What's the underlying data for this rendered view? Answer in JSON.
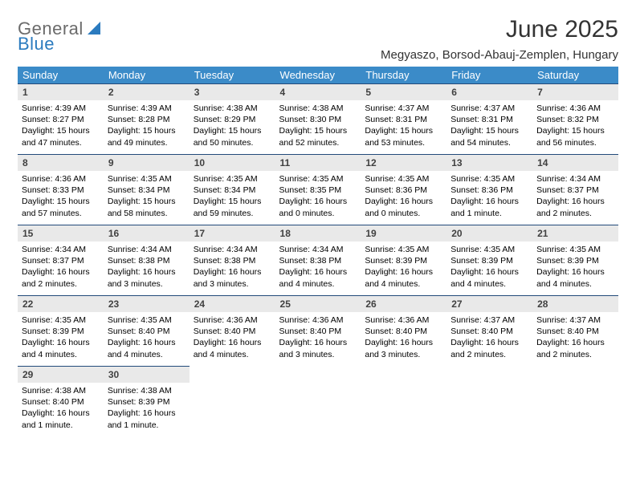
{
  "logo": {
    "text1": "General",
    "text2": "Blue"
  },
  "title": "June 2025",
  "location": "Megyaszo, Borsod-Abauj-Zemplen, Hungary",
  "headers": [
    "Sunday",
    "Monday",
    "Tuesday",
    "Wednesday",
    "Thursday",
    "Friday",
    "Saturday"
  ],
  "colors": {
    "header_bg": "#3b8bc8",
    "header_fg": "#ffffff",
    "daynum_bg": "#e9e9e9",
    "daynum_border": "#224a7a",
    "logo_gray": "#6b6b6b",
    "logo_blue": "#2b7bbf"
  },
  "weeks": [
    [
      {
        "n": "1",
        "sr": "Sunrise: 4:39 AM",
        "ss": "Sunset: 8:27 PM",
        "dl1": "Daylight: 15 hours",
        "dl2": "and 47 minutes."
      },
      {
        "n": "2",
        "sr": "Sunrise: 4:39 AM",
        "ss": "Sunset: 8:28 PM",
        "dl1": "Daylight: 15 hours",
        "dl2": "and 49 minutes."
      },
      {
        "n": "3",
        "sr": "Sunrise: 4:38 AM",
        "ss": "Sunset: 8:29 PM",
        "dl1": "Daylight: 15 hours",
        "dl2": "and 50 minutes."
      },
      {
        "n": "4",
        "sr": "Sunrise: 4:38 AM",
        "ss": "Sunset: 8:30 PM",
        "dl1": "Daylight: 15 hours",
        "dl2": "and 52 minutes."
      },
      {
        "n": "5",
        "sr": "Sunrise: 4:37 AM",
        "ss": "Sunset: 8:31 PM",
        "dl1": "Daylight: 15 hours",
        "dl2": "and 53 minutes."
      },
      {
        "n": "6",
        "sr": "Sunrise: 4:37 AM",
        "ss": "Sunset: 8:31 PM",
        "dl1": "Daylight: 15 hours",
        "dl2": "and 54 minutes."
      },
      {
        "n": "7",
        "sr": "Sunrise: 4:36 AM",
        "ss": "Sunset: 8:32 PM",
        "dl1": "Daylight: 15 hours",
        "dl2": "and 56 minutes."
      }
    ],
    [
      {
        "n": "8",
        "sr": "Sunrise: 4:36 AM",
        "ss": "Sunset: 8:33 PM",
        "dl1": "Daylight: 15 hours",
        "dl2": "and 57 minutes."
      },
      {
        "n": "9",
        "sr": "Sunrise: 4:35 AM",
        "ss": "Sunset: 8:34 PM",
        "dl1": "Daylight: 15 hours",
        "dl2": "and 58 minutes."
      },
      {
        "n": "10",
        "sr": "Sunrise: 4:35 AM",
        "ss": "Sunset: 8:34 PM",
        "dl1": "Daylight: 15 hours",
        "dl2": "and 59 minutes."
      },
      {
        "n": "11",
        "sr": "Sunrise: 4:35 AM",
        "ss": "Sunset: 8:35 PM",
        "dl1": "Daylight: 16 hours",
        "dl2": "and 0 minutes."
      },
      {
        "n": "12",
        "sr": "Sunrise: 4:35 AM",
        "ss": "Sunset: 8:36 PM",
        "dl1": "Daylight: 16 hours",
        "dl2": "and 0 minutes."
      },
      {
        "n": "13",
        "sr": "Sunrise: 4:35 AM",
        "ss": "Sunset: 8:36 PM",
        "dl1": "Daylight: 16 hours",
        "dl2": "and 1 minute."
      },
      {
        "n": "14",
        "sr": "Sunrise: 4:34 AM",
        "ss": "Sunset: 8:37 PM",
        "dl1": "Daylight: 16 hours",
        "dl2": "and 2 minutes."
      }
    ],
    [
      {
        "n": "15",
        "sr": "Sunrise: 4:34 AM",
        "ss": "Sunset: 8:37 PM",
        "dl1": "Daylight: 16 hours",
        "dl2": "and 2 minutes."
      },
      {
        "n": "16",
        "sr": "Sunrise: 4:34 AM",
        "ss": "Sunset: 8:38 PM",
        "dl1": "Daylight: 16 hours",
        "dl2": "and 3 minutes."
      },
      {
        "n": "17",
        "sr": "Sunrise: 4:34 AM",
        "ss": "Sunset: 8:38 PM",
        "dl1": "Daylight: 16 hours",
        "dl2": "and 3 minutes."
      },
      {
        "n": "18",
        "sr": "Sunrise: 4:34 AM",
        "ss": "Sunset: 8:38 PM",
        "dl1": "Daylight: 16 hours",
        "dl2": "and 4 minutes."
      },
      {
        "n": "19",
        "sr": "Sunrise: 4:35 AM",
        "ss": "Sunset: 8:39 PM",
        "dl1": "Daylight: 16 hours",
        "dl2": "and 4 minutes."
      },
      {
        "n": "20",
        "sr": "Sunrise: 4:35 AM",
        "ss": "Sunset: 8:39 PM",
        "dl1": "Daylight: 16 hours",
        "dl2": "and 4 minutes."
      },
      {
        "n": "21",
        "sr": "Sunrise: 4:35 AM",
        "ss": "Sunset: 8:39 PM",
        "dl1": "Daylight: 16 hours",
        "dl2": "and 4 minutes."
      }
    ],
    [
      {
        "n": "22",
        "sr": "Sunrise: 4:35 AM",
        "ss": "Sunset: 8:39 PM",
        "dl1": "Daylight: 16 hours",
        "dl2": "and 4 minutes."
      },
      {
        "n": "23",
        "sr": "Sunrise: 4:35 AM",
        "ss": "Sunset: 8:40 PM",
        "dl1": "Daylight: 16 hours",
        "dl2": "and 4 minutes."
      },
      {
        "n": "24",
        "sr": "Sunrise: 4:36 AM",
        "ss": "Sunset: 8:40 PM",
        "dl1": "Daylight: 16 hours",
        "dl2": "and 4 minutes."
      },
      {
        "n": "25",
        "sr": "Sunrise: 4:36 AM",
        "ss": "Sunset: 8:40 PM",
        "dl1": "Daylight: 16 hours",
        "dl2": "and 3 minutes."
      },
      {
        "n": "26",
        "sr": "Sunrise: 4:36 AM",
        "ss": "Sunset: 8:40 PM",
        "dl1": "Daylight: 16 hours",
        "dl2": "and 3 minutes."
      },
      {
        "n": "27",
        "sr": "Sunrise: 4:37 AM",
        "ss": "Sunset: 8:40 PM",
        "dl1": "Daylight: 16 hours",
        "dl2": "and 2 minutes."
      },
      {
        "n": "28",
        "sr": "Sunrise: 4:37 AM",
        "ss": "Sunset: 8:40 PM",
        "dl1": "Daylight: 16 hours",
        "dl2": "and 2 minutes."
      }
    ],
    [
      {
        "n": "29",
        "sr": "Sunrise: 4:38 AM",
        "ss": "Sunset: 8:40 PM",
        "dl1": "Daylight: 16 hours",
        "dl2": "and 1 minute."
      },
      {
        "n": "30",
        "sr": "Sunrise: 4:38 AM",
        "ss": "Sunset: 8:39 PM",
        "dl1": "Daylight: 16 hours",
        "dl2": "and 1 minute."
      },
      null,
      null,
      null,
      null,
      null
    ]
  ]
}
